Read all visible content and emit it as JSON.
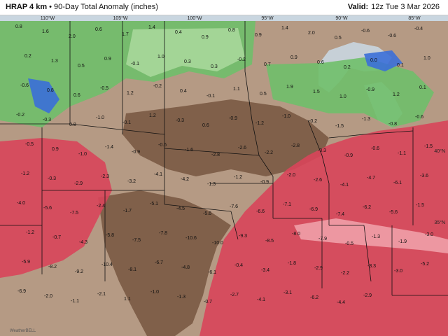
{
  "header": {
    "model": "HRAP 4 km",
    "separator": "•",
    "product": "90-Day Total Anomaly (inches)",
    "valid_label": "Valid:",
    "valid_time": "12z Tue 3 Mar 2026"
  },
  "map": {
    "longitude_labels": [
      "110°W",
      "105°W",
      "100°W",
      "95°W",
      "90°W",
      "85°W"
    ],
    "latitude_labels": [
      "40°N",
      "35°N"
    ],
    "watermark": "WeatherBELL",
    "colors": {
      "water": "#c9d6e0",
      "wet_green": "#6fbf6a",
      "wet_light_green": "#a8d89a",
      "wet_blue": "#3b6fd8",
      "dry_brown": "#7a5a44",
      "dry_tan": "#b59a84",
      "dry_red": "#d8455a",
      "dry_pink": "#f0a0a8",
      "border": "#111111"
    },
    "value_labels": [
      "0.8",
      "1.6",
      "2.0",
      "0.6",
      "1.7",
      "1.4",
      "0.4",
      "0.9",
      "0.8",
      "0.9",
      "1.4",
      "2.0",
      "0.5",
      "-0.6",
      "-0.6",
      "-0.4",
      "0.2",
      "1.3",
      "0.5",
      "0.9",
      "-0.1",
      "1.0",
      "0.3",
      "0.3",
      "-0.2",
      "0.7",
      "0.9",
      "0.6",
      "0.2",
      "0.0",
      "0.1",
      "1.0",
      "-0.6",
      "0.8",
      "0.6",
      "-0.5",
      "1.2",
      "-0.2",
      "0.4",
      "-0.1",
      "1.1",
      "0.5",
      "1.9",
      "1.5",
      "1.0",
      "-0.9",
      "1.2",
      "0.1",
      "-0.2",
      "-0.3",
      "0.8",
      "-1.0",
      "-0.1",
      "1.2",
      "-0.3",
      "0.6",
      "-0.9",
      "-1.2",
      "-1.0",
      "-0.2",
      "-1.5",
      "-1.3",
      "-0.8",
      "-0.6",
      "-0.5",
      "0.9",
      "-1.0",
      "-1.4",
      "-0.9",
      "-0.6",
      "-1.6",
      "-2.8",
      "-2.6",
      "-2.2",
      "-2.8",
      "-0.3",
      "-0.9",
      "-0.6",
      "-1.1",
      "-1.5",
      "-1.2",
      "-0.3",
      "-2.9",
      "-2.3",
      "-3.2",
      "-4.1",
      "-4.2",
      "-1.3",
      "-1.2",
      "-0.9",
      "-2.0",
      "-2.6",
      "-4.1",
      "-4.7",
      "-6.1",
      "-3.6",
      "-4.0",
      "-5.6",
      "-7.5",
      "-2.4",
      "-1.7",
      "-5.1",
      "-4.5",
      "-5.6",
      "-7.6",
      "-6.6",
      "-7.1",
      "-6.9",
      "-7.4",
      "-6.2",
      "-5.6",
      "-1.5",
      "-1.2",
      "-0.7",
      "-4.3",
      "-5.8",
      "-7.5",
      "-7.8",
      "-10.6",
      "-10.0",
      "-9.3",
      "-8.5",
      "-8.0",
      "-7.9",
      "-0.5",
      "-1.3",
      "-1.9",
      "-3.0",
      "-5.9",
      "-8.2",
      "-9.2",
      "-10.4",
      "-8.1",
      "-6.7",
      "-4.8",
      "-6.1",
      "-0.4",
      "-3.4",
      "-1.8",
      "-2.9",
      "-2.2",
      "-3.3",
      "-3.0",
      "-5.2",
      "-6.9",
      "-2.0",
      "-1.1",
      "-2.1",
      "1.1",
      "-1.0",
      "-1.3",
      "-0.7",
      "-2.7",
      "-4.1",
      "-3.1",
      "-6.2",
      "-4.4",
      "-2.9"
    ]
  }
}
